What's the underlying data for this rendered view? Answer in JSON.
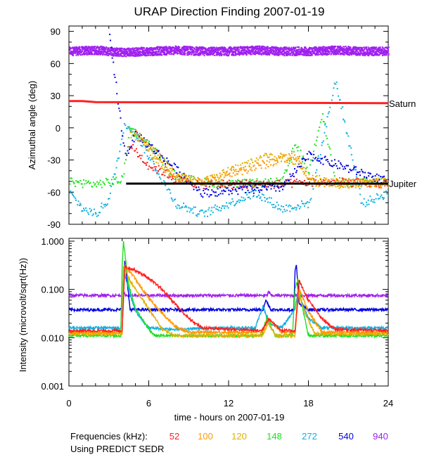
{
  "chart_data": [
    {
      "type": "scatter",
      "panel": "top",
      "title": "URAP Direction Finding  2007-01-19",
      "ylabel": "Azimuthal angle (deg)",
      "xlim": [
        0,
        24
      ],
      "ylim": [
        -90,
        95
      ],
      "yticks": [
        90,
        60,
        30,
        0,
        -30,
        -60,
        -90
      ],
      "reference_lines": [
        {
          "name": "Saturn",
          "color": "#ff2020",
          "x": [
            0,
            1,
            2,
            24
          ],
          "y": [
            25,
            25,
            24,
            23
          ]
        },
        {
          "name": "Jupiter",
          "color": "#000000",
          "x": [
            4.3,
            24
          ],
          "y": [
            -52,
            -52
          ]
        }
      ],
      "series": [
        {
          "freq": "940",
          "color": "#a020f0",
          "description": "steady band",
          "points": [
            [
              0,
              72
            ],
            [
              2,
              73
            ],
            [
              4,
              71
            ],
            [
              6,
              72
            ],
            [
              8,
              73
            ],
            [
              10,
              72
            ],
            [
              12,
              72
            ],
            [
              14,
              73
            ],
            [
              16,
              72
            ],
            [
              18,
              72
            ],
            [
              20,
              73
            ],
            [
              22,
              72
            ],
            [
              24,
              72
            ]
          ]
        },
        {
          "freq": "148",
          "color": "#20e020",
          "description": "early band / event",
          "points": [
            [
              0,
              -50
            ],
            [
              2,
              -52
            ],
            [
              4,
              -48
            ],
            [
              4.5,
              0
            ],
            [
              5,
              -5
            ],
            [
              6,
              -15
            ],
            [
              7,
              -30
            ],
            [
              8,
              -45
            ],
            [
              10,
              -50
            ],
            [
              12,
              -52
            ],
            [
              16,
              -50
            ],
            [
              17,
              -15
            ],
            [
              18,
              -40
            ],
            [
              19,
              15
            ],
            [
              20,
              -50
            ],
            [
              24,
              -50
            ]
          ]
        },
        {
          "freq": "272",
          "color": "#10b0e0",
          "description": "scattered",
          "points": [
            [
              0,
              -60
            ],
            [
              1,
              -75
            ],
            [
              2,
              -80
            ],
            [
              3,
              -65
            ],
            [
              4.2,
              5
            ],
            [
              5,
              -5
            ],
            [
              8,
              -70
            ],
            [
              10,
              -80
            ],
            [
              14,
              -60
            ],
            [
              16,
              -75
            ],
            [
              18,
              -70
            ],
            [
              20,
              45
            ],
            [
              22,
              -70
            ],
            [
              24,
              -60
            ]
          ]
        },
        {
          "freq": "52",
          "color": "#ff2020",
          "description": "drift",
          "points": [
            [
              4.5,
              -15
            ],
            [
              6,
              -35
            ],
            [
              7,
              -40
            ],
            [
              8,
              -48
            ],
            [
              10,
              -52
            ],
            [
              12,
              -52
            ],
            [
              16,
              -52
            ],
            [
              18,
              -50
            ],
            [
              20,
              -50
            ],
            [
              24,
              -52
            ]
          ]
        },
        {
          "freq": "540",
          "color": "#0000e0",
          "description": "scattered",
          "points": [
            [
              3,
              85
            ],
            [
              4.2,
              -25
            ],
            [
              5,
              -5
            ],
            [
              10,
              -60
            ],
            [
              16,
              -55
            ],
            [
              18,
              -25
            ],
            [
              24,
              -50
            ]
          ]
        },
        {
          "freq": "120",
          "color": "#e0b000",
          "description": "drift",
          "points": [
            [
              4.5,
              -5
            ],
            [
              5.5,
              -10
            ],
            [
              6,
              -20
            ],
            [
              7,
              -35
            ],
            [
              8,
              -45
            ],
            [
              10,
              -50
            ],
            [
              15,
              -25
            ],
            [
              17,
              -30
            ],
            [
              18,
              -45
            ],
            [
              20,
              -52
            ],
            [
              24,
              -50
            ]
          ]
        },
        {
          "freq": "100",
          "color": "#ff9900",
          "description": "drift",
          "points": [
            [
              5,
              -5
            ],
            [
              6,
              -18
            ],
            [
              7,
              -30
            ],
            [
              8,
              -45
            ],
            [
              10,
              -50
            ],
            [
              17,
              -25
            ],
            [
              18,
              -50
            ],
            [
              24,
              -52
            ]
          ]
        }
      ]
    },
    {
      "type": "line",
      "panel": "bottom",
      "xlabel": "time - hours on 2007-01-19",
      "ylabel": "Intensity (microvolt/sqrt(Hz))",
      "yscale": "log",
      "xlim": [
        0,
        24
      ],
      "ylim": [
        0.001,
        1.0
      ],
      "xticks": [
        0,
        6,
        12,
        18,
        24
      ],
      "ytick_labels": [
        "1.000",
        "0.100",
        "0.010",
        "0.001"
      ],
      "yticks": [
        1.0,
        0.1,
        0.01,
        0.001
      ],
      "series": [
        {
          "freq": "940",
          "color": "#a020f0",
          "x": [
            0,
            4,
            4.1,
            4.3,
            5,
            10,
            14.9,
            15,
            15.2,
            17,
            24
          ],
          "y": [
            0.075,
            0.075,
            0.085,
            0.075,
            0.075,
            0.075,
            0.075,
            0.09,
            0.075,
            0.075,
            0.075
          ]
        },
        {
          "freq": "540",
          "color": "#0000e0",
          "x": [
            0,
            4,
            4.1,
            4.2,
            4.6,
            8,
            14.6,
            14.8,
            15.2,
            16.9,
            17,
            17.1,
            17.3,
            18,
            24
          ],
          "y": [
            0.038,
            0.038,
            0.1,
            0.4,
            0.038,
            0.038,
            0.038,
            0.06,
            0.038,
            0.038,
            0.25,
            0.33,
            0.05,
            0.038,
            0.038
          ]
        },
        {
          "freq": "272",
          "color": "#10b0e0",
          "x": [
            0,
            3.9,
            4,
            4.1,
            4.5,
            5,
            6,
            8,
            12,
            14,
            14.6,
            15,
            16,
            17,
            17.2,
            18,
            19,
            24
          ],
          "y": [
            0.016,
            0.016,
            0.05,
            0.25,
            0.1,
            0.035,
            0.016,
            0.015,
            0.016,
            0.016,
            0.045,
            0.02,
            0.016,
            0.04,
            0.09,
            0.025,
            0.016,
            0.016
          ]
        },
        {
          "freq": "148",
          "color": "#20e020",
          "x": [
            0,
            3.9,
            4,
            4.1,
            4.5,
            5,
            6,
            6.5,
            8,
            10,
            14.5,
            14.9,
            15.5,
            16.8,
            17,
            17.2,
            17.5,
            18,
            24
          ],
          "y": [
            0.011,
            0.011,
            0.3,
            1.0,
            0.12,
            0.04,
            0.015,
            0.011,
            0.011,
            0.011,
            0.011,
            0.028,
            0.011,
            0.011,
            0.11,
            0.16,
            0.05,
            0.011,
            0.011
          ]
        },
        {
          "freq": "120",
          "color": "#e0b000",
          "x": [
            0,
            4,
            4.1,
            4.6,
            5,
            6,
            7,
            8,
            14.5,
            15,
            15.5,
            17,
            17.2,
            17.8,
            18.5,
            24
          ],
          "y": [
            0.012,
            0.012,
            0.3,
            0.15,
            0.1,
            0.04,
            0.015,
            0.011,
            0.011,
            0.02,
            0.011,
            0.011,
            0.09,
            0.03,
            0.012,
            0.012
          ]
        },
        {
          "freq": "100",
          "color": "#ff9900",
          "x": [
            0,
            4,
            4.2,
            4.8,
            5.5,
            6.5,
            8,
            9,
            14.5,
            15,
            16,
            17,
            17.3,
            18,
            19,
            24
          ],
          "y": [
            0.013,
            0.013,
            0.3,
            0.2,
            0.1,
            0.045,
            0.017,
            0.013,
            0.013,
            0.025,
            0.013,
            0.013,
            0.1,
            0.035,
            0.013,
            0.013
          ]
        },
        {
          "freq": "52",
          "color": "#ff2020",
          "x": [
            0,
            4,
            4.2,
            5,
            6,
            7,
            8,
            9,
            10,
            14.5,
            15,
            16,
            17,
            17.3,
            18,
            19,
            20,
            24
          ],
          "y": [
            0.014,
            0.014,
            0.3,
            0.25,
            0.17,
            0.1,
            0.05,
            0.025,
            0.016,
            0.014,
            0.025,
            0.014,
            0.014,
            0.15,
            0.06,
            0.025,
            0.015,
            0.014
          ]
        }
      ]
    }
  ],
  "legend": {
    "label": "Frequencies (kHz):",
    "items": [
      {
        "text": "52",
        "color": "#ff2020"
      },
      {
        "text": "100",
        "color": "#ff9900"
      },
      {
        "text": "120",
        "color": "#e0b000"
      },
      {
        "text": "148",
        "color": "#20e020"
      },
      {
        "text": "272",
        "color": "#10b0e0"
      },
      {
        "text": "540",
        "color": "#0000e0"
      },
      {
        "text": "940",
        "color": "#a020f0"
      }
    ]
  },
  "source_note": "Using PREDICT SEDR"
}
